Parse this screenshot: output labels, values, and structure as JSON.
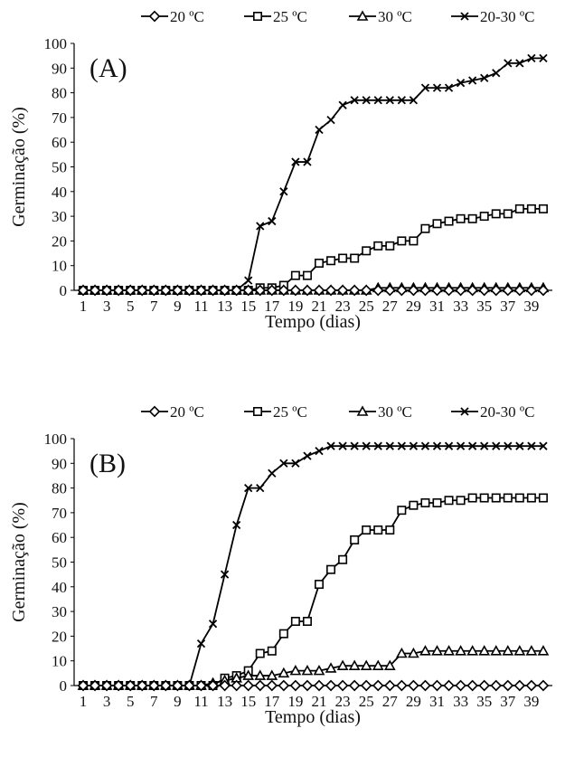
{
  "charts": [
    {
      "id": "A",
      "type": "line",
      "panel_label": "(A)",
      "xlabel": "Tempo (dias)",
      "ylabel": "Germinação (%)",
      "xlim": [
        1,
        40
      ],
      "ylim": [
        0,
        100
      ],
      "y_ticks": [
        0,
        10,
        20,
        30,
        40,
        50,
        60,
        70,
        80,
        90,
        100
      ],
      "x_ticks": [
        1,
        3,
        5,
        7,
        9,
        11,
        13,
        15,
        17,
        19,
        21,
        23,
        25,
        27,
        29,
        31,
        33,
        35,
        37,
        39
      ],
      "grid": false,
      "legend_position": "top",
      "series": [
        {
          "name": "20 ºC",
          "marker": "diamond",
          "values": [
            0,
            0,
            0,
            0,
            0,
            0,
            0,
            0,
            0,
            0,
            0,
            0,
            0,
            0,
            0,
            0,
            0,
            0,
            0,
            0,
            0,
            0,
            0,
            0,
            0,
            0,
            0,
            0,
            0,
            0,
            0,
            0,
            0,
            0,
            0,
            0,
            0,
            0,
            0,
            0
          ]
        },
        {
          "name": "25 ºC",
          "marker": "square",
          "values": [
            0,
            0,
            0,
            0,
            0,
            0,
            0,
            0,
            0,
            0,
            0,
            0,
            0,
            0,
            0,
            1,
            1,
            2,
            6,
            6,
            11,
            12,
            13,
            13,
            16,
            18,
            18,
            20,
            20,
            25,
            27,
            28,
            29,
            29,
            30,
            31,
            31,
            33,
            33,
            33
          ]
        },
        {
          "name": "30 ºC",
          "marker": "triangle",
          "values": [
            0,
            0,
            0,
            0,
            0,
            0,
            0,
            0,
            0,
            0,
            0,
            0,
            0,
            0,
            0,
            0,
            0,
            0,
            0,
            0,
            0,
            0,
            0,
            0,
            0,
            1,
            1,
            1,
            1,
            1,
            1,
            1,
            1,
            1,
            1,
            1,
            1,
            1,
            1,
            1
          ]
        },
        {
          "name": "20-30 ºC",
          "marker": "x",
          "values": [
            0,
            0,
            0,
            0,
            0,
            0,
            0,
            0,
            0,
            0,
            0,
            0,
            0,
            0,
            4,
            26,
            28,
            40,
            52,
            52,
            65,
            69,
            75,
            77,
            77,
            77,
            77,
            77,
            77,
            82,
            82,
            82,
            84,
            85,
            86,
            88,
            92,
            92,
            94,
            94
          ]
        }
      ]
    },
    {
      "id": "B",
      "type": "line",
      "panel_label": "(B)",
      "xlabel": "Tempo (dias)",
      "ylabel": "Germinação (%)",
      "xlim": [
        1,
        40
      ],
      "ylim": [
        0,
        100
      ],
      "y_ticks": [
        0,
        10,
        20,
        30,
        40,
        50,
        60,
        70,
        80,
        90,
        100
      ],
      "x_ticks": [
        1,
        3,
        5,
        7,
        9,
        11,
        13,
        15,
        17,
        19,
        21,
        23,
        25,
        27,
        29,
        31,
        33,
        35,
        37,
        39
      ],
      "grid": false,
      "legend_position": "top",
      "series": [
        {
          "name": "20 ºC",
          "marker": "diamond",
          "values": [
            0,
            0,
            0,
            0,
            0,
            0,
            0,
            0,
            0,
            0,
            0,
            0,
            0,
            0,
            0,
            0,
            0,
            0,
            0,
            0,
            0,
            0,
            0,
            0,
            0,
            0,
            0,
            0,
            0,
            0,
            0,
            0,
            0,
            0,
            0,
            0,
            0,
            0,
            0,
            0
          ]
        },
        {
          "name": "25 ºC",
          "marker": "square",
          "values": [
            0,
            0,
            0,
            0,
            0,
            0,
            0,
            0,
            0,
            0,
            0,
            0,
            3,
            4,
            6,
            13,
            14,
            21,
            26,
            26,
            41,
            47,
            51,
            59,
            63,
            63,
            63,
            71,
            73,
            74,
            74,
            75,
            75,
            76,
            76,
            76,
            76,
            76,
            76,
            76
          ]
        },
        {
          "name": "30 ºC",
          "marker": "triangle",
          "values": [
            0,
            0,
            0,
            0,
            0,
            0,
            0,
            0,
            0,
            0,
            0,
            1,
            2,
            3,
            4,
            4,
            4,
            5,
            6,
            6,
            6,
            7,
            8,
            8,
            8,
            8,
            8,
            13,
            13,
            14,
            14,
            14,
            14,
            14,
            14,
            14,
            14,
            14,
            14,
            14
          ]
        },
        {
          "name": "20-30 ºC",
          "marker": "x",
          "values": [
            0,
            0,
            0,
            0,
            0,
            0,
            0,
            0,
            0,
            0,
            17,
            25,
            45,
            65,
            80,
            80,
            86,
            90,
            90,
            93,
            95,
            97,
            97,
            97,
            97,
            97,
            97,
            97,
            97,
            97,
            97,
            97,
            97,
            97,
            97,
            97,
            97,
            97,
            97,
            97
          ]
        }
      ]
    }
  ]
}
